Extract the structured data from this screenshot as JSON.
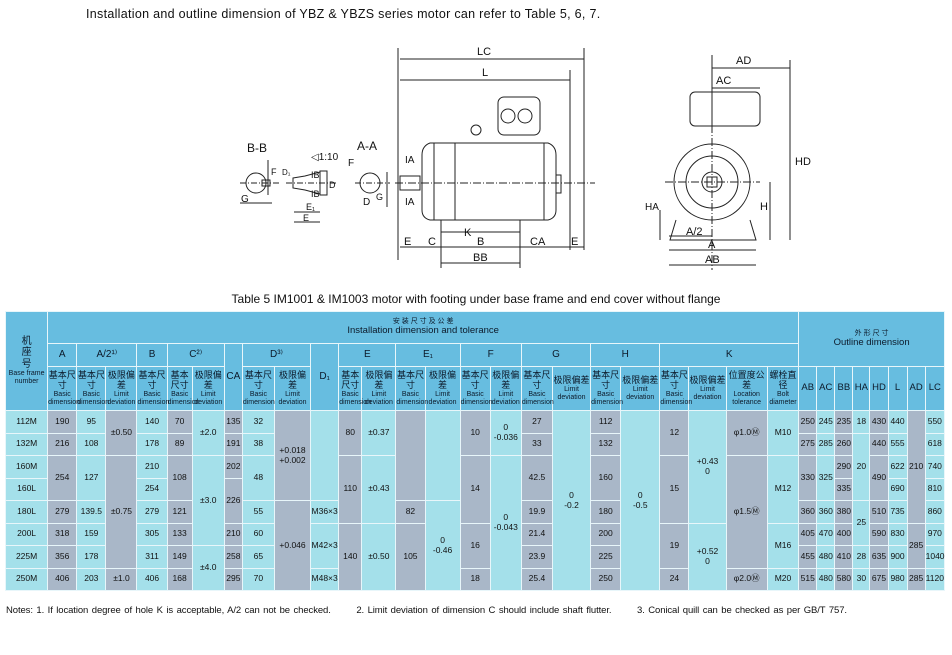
{
  "intro": "Installation and outline dimension of YBZ & YBZS series motor can refer to Table 5, 6, 7.",
  "drawing": {
    "bb_label": "B-B",
    "aa_label": "A-A",
    "taper": "◁1:10",
    "labels": {
      "LC": "LC",
      "L": "L",
      "AD": "AD",
      "AC": "AC",
      "HD": "HD",
      "H": "H",
      "HA": "HA",
      "A2": "A/2",
      "A": "A",
      "AB": "AB",
      "E": "E",
      "C": "C",
      "B": "B",
      "CA": "CA",
      "BB": "BB",
      "K": "K",
      "IA": "IA",
      "IB": "IB",
      "F": "F",
      "G": "G",
      "D": "D",
      "D1": "D₁",
      "E1": "E₁"
    }
  },
  "caption": "Table 5 IM1001 & IM1003 motor with footing under base frame and end cover without flange",
  "header": {
    "frame_cn": "机座号",
    "frame_en": "Base frame number",
    "install_cn": "安 装 尺 寸 及 公 差",
    "install_en": "Installation dimension and tolerance",
    "outline_cn": "外 形 尺 寸",
    "outline_en": "Outline dimension",
    "basic_cn": "基本尺寸",
    "basic_en": "Basic dimension",
    "limit_cn": "极限偏差",
    "limit_en": "Limit deviation",
    "loc_cn": "位置度公差",
    "loc_en": "Location tolerance",
    "bolt_cn": "螺栓直径",
    "bolt_en": "Bolt diameter",
    "groups": {
      "A": "A",
      "A2": "A/2¹⁾",
      "B": "B",
      "C": "C²⁾",
      "CA": "CA",
      "D": "D³⁾",
      "D1": "D₁",
      "E": "E",
      "E1": "E₁",
      "F": "F",
      "G": "G",
      "H": "H",
      "K": "K"
    },
    "outline_cols": [
      "AB",
      "AC",
      "BB",
      "HA",
      "HD",
      "L",
      "AD",
      "LC"
    ]
  },
  "columns": [
    [
      {
        "v": "112M"
      },
      {
        "v": "132M"
      },
      {
        "v": "160M"
      },
      {
        "v": "160L"
      },
      {
        "v": "180L"
      },
      {
        "v": "200L"
      },
      {
        "v": "225M"
      },
      {
        "v": "250M"
      }
    ],
    [
      {
        "v": "190"
      },
      {
        "v": "216"
      },
      {
        "v": "254",
        "span": 2
      },
      {
        "v": "279"
      },
      {
        "v": "318"
      },
      {
        "v": "356"
      },
      {
        "v": "406"
      }
    ],
    [
      {
        "v": "95"
      },
      {
        "v": "108"
      },
      {
        "v": "127",
        "span": 2
      },
      {
        "v": "139.5"
      },
      {
        "v": "159"
      },
      {
        "v": "178"
      },
      {
        "v": "203"
      }
    ],
    [
      {
        "v": "±0.50",
        "span": 2
      },
      {
        "v": "±0.75",
        "span": 5
      },
      {
        "v": "±1.0"
      }
    ],
    [
      {
        "v": "140"
      },
      {
        "v": "178"
      },
      {
        "v": "210"
      },
      {
        "v": "254"
      },
      {
        "v": "279"
      },
      {
        "v": "305"
      },
      {
        "v": "311"
      },
      {
        "v": "406"
      }
    ],
    [
      {
        "v": "70"
      },
      {
        "v": "89"
      },
      {
        "v": "108",
        "span": 2
      },
      {
        "v": "121"
      },
      {
        "v": "133"
      },
      {
        "v": "149"
      },
      {
        "v": "168"
      }
    ],
    [
      {
        "v": "±2.0",
        "span": 2
      },
      {
        "v": "±3.0",
        "span": 4
      },
      {
        "v": "±4.0",
        "span": 2
      }
    ],
    [
      {
        "v": "135"
      },
      {
        "v": "191"
      },
      {
        "v": "202"
      },
      {
        "v": "226",
        "span": 2
      },
      {
        "v": "210"
      },
      {
        "v": "258"
      },
      {
        "v": "295"
      }
    ],
    [
      {
        "v": "32"
      },
      {
        "v": "38"
      },
      {
        "v": "48",
        "span": 2
      },
      {
        "v": "55"
      },
      {
        "v": "60"
      },
      {
        "v": "65"
      },
      {
        "v": "70"
      }
    ],
    [
      {
        "v": "+0.018\n+0.002",
        "span": 4
      },
      {
        "v": "+0.046",
        "span": 4
      }
    ],
    [
      {
        "v": "",
        "span": 4
      },
      {
        "v": "M36×3"
      },
      {
        "v": "M42×3",
        "span": 2
      },
      {
        "v": "M48×3"
      }
    ],
    [
      {
        "v": "80",
        "span": 2
      },
      {
        "v": "110",
        "span": 3
      },
      {
        "v": "140",
        "span": 3
      }
    ],
    [
      {
        "v": "±0.37",
        "span": 2
      },
      {
        "v": "±0.43",
        "span": 3
      },
      {
        "v": "±0.50",
        "span": 3
      }
    ],
    [
      {
        "v": "",
        "span": 4
      },
      {
        "v": "82"
      },
      {
        "v": "105",
        "span": 3
      }
    ],
    [
      {
        "v": "",
        "span": 4
      },
      {
        "v": "0\n-0.46",
        "span": 4
      }
    ],
    [
      {
        "v": "10",
        "span": 2
      },
      {
        "v": "14",
        "span": 3
      },
      {
        "v": "16",
        "span": 2
      },
      {
        "v": "18"
      }
    ],
    [
      {
        "v": "0\n-0.036",
        "span": 2
      },
      {
        "v": "0\n-0.043",
        "span": 6
      }
    ],
    [
      {
        "v": "27"
      },
      {
        "v": "33"
      },
      {
        "v": "42.5",
        "span": 2
      },
      {
        "v": "19.9"
      },
      {
        "v": "21.4"
      },
      {
        "v": "23.9"
      },
      {
        "v": "25.4"
      }
    ],
    [
      {
        "v": "0\n-0.2",
        "span": 8
      }
    ],
    [
      {
        "v": "112"
      },
      {
        "v": "132"
      },
      {
        "v": "160",
        "span": 2
      },
      {
        "v": "180"
      },
      {
        "v": "200"
      },
      {
        "v": "225"
      },
      {
        "v": "250"
      }
    ],
    [
      {
        "v": "0\n-0.5",
        "span": 8
      }
    ],
    [
      {
        "v": "12",
        "span": 2
      },
      {
        "v": "15",
        "span": 3
      },
      {
        "v": "19",
        "span": 2
      },
      {
        "v": "24"
      }
    ],
    [
      {
        "v": "+0.43\n0",
        "span": 5
      },
      {
        "v": "+0.52\n0",
        "span": 3
      }
    ],
    [
      {
        "v": "φ1.0Ⓜ",
        "span": 2
      },
      {
        "v": "φ1.5Ⓜ",
        "span": 5
      },
      {
        "v": "φ2.0Ⓜ"
      }
    ],
    [
      {
        "v": "M10",
        "span": 2
      },
      {
        "v": "M12",
        "span": 3
      },
      {
        "v": "M16",
        "span": 2
      },
      {
        "v": "M20"
      }
    ],
    [
      {
        "v": "250"
      },
      {
        "v": "275"
      },
      {
        "v": "330",
        "span": 2
      },
      {
        "v": "360"
      },
      {
        "v": "405"
      },
      {
        "v": "455"
      },
      {
        "v": "515"
      }
    ],
    [
      {
        "v": "245"
      },
      {
        "v": "285"
      },
      {
        "v": "325",
        "span": 2
      },
      {
        "v": "360"
      },
      {
        "v": "470"
      },
      {
        "v": "480"
      },
      {
        "v": "480"
      }
    ],
    [
      {
        "v": "235"
      },
      {
        "v": "260"
      },
      {
        "v": "290"
      },
      {
        "v": "335"
      },
      {
        "v": "380"
      },
      {
        "v": "400"
      },
      {
        "v": "410"
      },
      {
        "v": "580"
      }
    ],
    [
      {
        "v": "18"
      },
      {
        "v": "20",
        "span": 3
      },
      {
        "v": "25",
        "span": 2
      },
      {
        "v": "28"
      },
      {
        "v": "30"
      }
    ],
    [
      {
        "v": "430"
      },
      {
        "v": "440"
      },
      {
        "v": "490",
        "span": 2
      },
      {
        "v": "510"
      },
      {
        "v": "590"
      },
      {
        "v": "635"
      },
      {
        "v": "675"
      }
    ],
    [
      {
        "v": "440"
      },
      {
        "v": "555"
      },
      {
        "v": "622"
      },
      {
        "v": "690"
      },
      {
        "v": "735"
      },
      {
        "v": "830"
      },
      {
        "v": "900"
      },
      {
        "v": "980"
      }
    ],
    [
      {
        "v": "210",
        "span": 5
      },
      {
        "v": "285",
        "span": 2
      },
      {
        "v": "285"
      }
    ],
    [
      {
        "v": "550"
      },
      {
        "v": "618"
      },
      {
        "v": "740"
      },
      {
        "v": "810"
      },
      {
        "v": "860"
      },
      {
        "v": "970"
      },
      {
        "v": "1040"
      },
      {
        "v": "1120"
      }
    ]
  ],
  "notes": [
    "Notes: 1. If location degree of hole K is acceptable, A/2 can not be checked.",
    "2. Limit deviation of dimension C should include shaft flutter.",
    "3. Conical quill can be checked as per GB/T 757."
  ]
}
